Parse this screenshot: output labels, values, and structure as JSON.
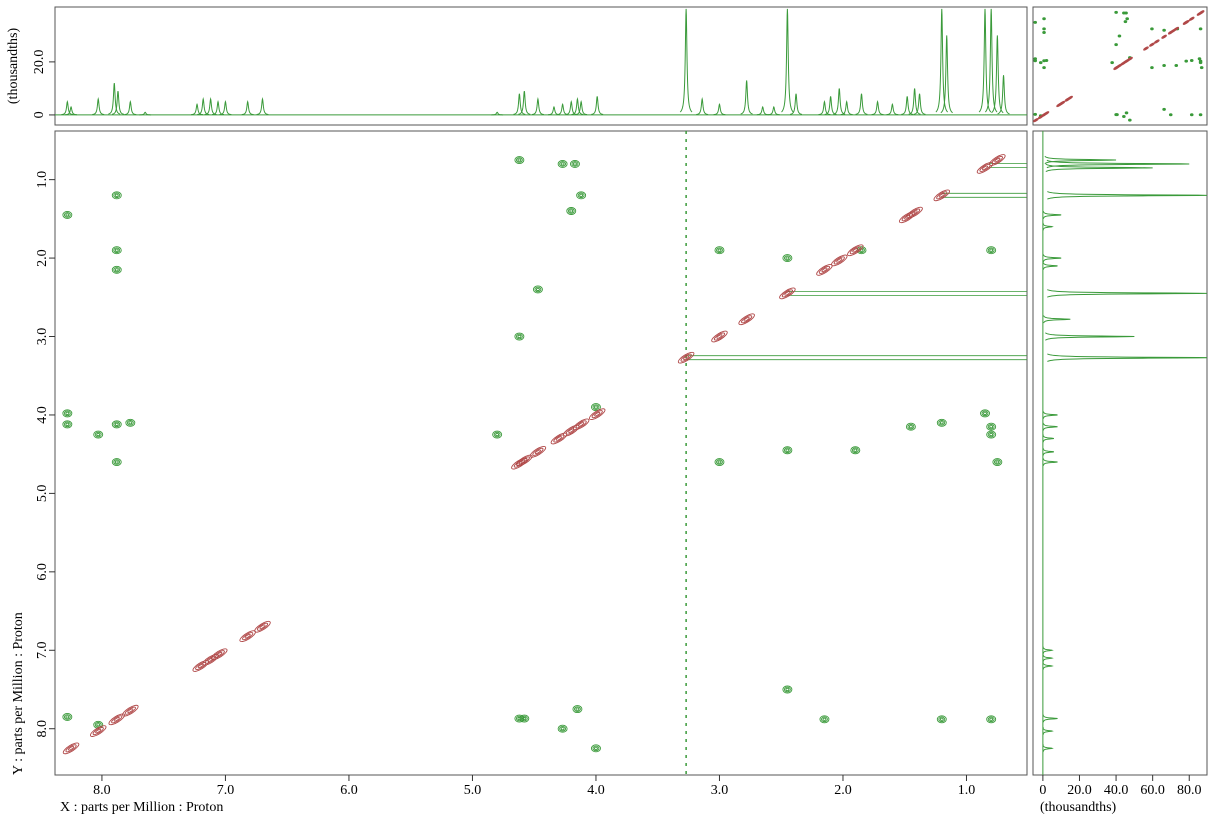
{
  "chart_data": {
    "type": "nmr2d",
    "x_label": "X : parts per Million : Proton",
    "y_label": "Y : parts per Million : Proton",
    "xlim": [
      8.38,
      0.51
    ],
    "ylim": [
      0.38,
      8.59
    ],
    "xticks": [
      {
        "value": 8,
        "label": "8.0"
      },
      {
        "value": 7,
        "label": "7.0"
      },
      {
        "value": 6,
        "label": "6.0"
      },
      {
        "value": 5,
        "label": "5.0"
      },
      {
        "value": 4,
        "label": "4.0"
      },
      {
        "value": 3,
        "label": "3.0"
      },
      {
        "value": 2,
        "label": "2.0"
      },
      {
        "value": 1,
        "label": "1.0"
      }
    ],
    "yticks": [
      {
        "value": 1,
        "label": "1.0"
      },
      {
        "value": 2,
        "label": "2.0"
      },
      {
        "value": 3,
        "label": "3.0"
      },
      {
        "value": 4,
        "label": "4.0"
      },
      {
        "value": 5,
        "label": "5.0"
      },
      {
        "value": 6,
        "label": "6.0"
      },
      {
        "value": 7,
        "label": "7.0"
      },
      {
        "value": 8,
        "label": "8.0"
      }
    ],
    "top_projection": {
      "axis_label": "(thousandths)",
      "color": "#3a9a3a",
      "ylim": [
        -3.8,
        40.7
      ],
      "yticks": [
        0,
        {
          "value": 20,
          "label": "20.0"
        }
      ],
      "x": [
        8.28,
        8.25,
        8.03,
        7.9,
        7.87,
        7.77,
        7.65,
        7.23,
        7.18,
        7.12,
        7.06,
        7.0,
        6.82,
        6.7,
        4.8,
        4.62,
        4.58,
        4.47,
        4.34,
        4.27,
        4.2,
        4.15,
        4.12,
        3.99,
        3.27,
        3.14,
        3.0,
        2.78,
        2.65,
        2.56,
        2.45,
        2.38,
        2.15,
        2.1,
        2.03,
        1.97,
        1.85,
        1.72,
        1.6,
        1.48,
        1.42,
        1.38,
        1.2,
        1.16,
        0.85,
        0.8,
        0.75,
        0.7
      ],
      "values": [
        5,
        3,
        6,
        12,
        9,
        5,
        1,
        4,
        6,
        6,
        5,
        5,
        5,
        6,
        1,
        8,
        9,
        6,
        3,
        4,
        5,
        6,
        5,
        7,
        40,
        6,
        4,
        13,
        3,
        3,
        40,
        8,
        5,
        7,
        10,
        5,
        8,
        5,
        4,
        7,
        10,
        8,
        40,
        30,
        40,
        40,
        30,
        15
      ]
    },
    "right_projection": {
      "axis_label": "(thousandths)",
      "color": "#3a9a3a",
      "xlim": [
        -5.4,
        89.7
      ],
      "xticks": [
        0,
        {
          "value": 20,
          "label": "20.0"
        },
        {
          "value": 40,
          "label": "40.0"
        },
        {
          "value": 60,
          "label": "60.0"
        },
        {
          "value": 80,
          "label": "80.0"
        }
      ],
      "y": [
        0.75,
        0.8,
        0.85,
        1.2,
        1.45,
        1.6,
        2.0,
        2.1,
        2.45,
        2.78,
        3.0,
        3.27,
        4.0,
        4.15,
        4.3,
        4.47,
        4.6,
        7.0,
        7.1,
        7.2,
        7.87,
        8.03,
        8.25
      ],
      "values": [
        40,
        80,
        60,
        90,
        10,
        5,
        10,
        8,
        90,
        15,
        50,
        90,
        8,
        8,
        6,
        6,
        8,
        5,
        5,
        5,
        8,
        5,
        5
      ]
    },
    "diagonal_peaks": {
      "color": "#b04848",
      "x": [
        8.25,
        8.03,
        7.88,
        7.77,
        7.2,
        7.12,
        7.05,
        6.82,
        6.7,
        4.62,
        4.58,
        4.47,
        4.3,
        4.2,
        4.12,
        3.99,
        3.27,
        3.0,
        2.78,
        2.45,
        2.15,
        2.03,
        1.9,
        1.48,
        1.42,
        1.2,
        0.85,
        0.75
      ],
      "y": [
        8.25,
        8.03,
        7.88,
        7.77,
        7.2,
        7.12,
        7.05,
        6.82,
        6.7,
        4.62,
        4.58,
        4.47,
        4.3,
        4.2,
        4.12,
        3.99,
        3.27,
        3.0,
        2.78,
        2.45,
        2.15,
        2.03,
        1.9,
        1.48,
        1.42,
        1.2,
        0.85,
        0.75
      ]
    },
    "cross_peaks": {
      "color": "#3a9a3a",
      "x": [
        8.28,
        8.28,
        8.28,
        8.28,
        8.03,
        8.03,
        7.88,
        7.88,
        7.88,
        7.88,
        7.88,
        7.77,
        4.62,
        4.62,
        4.62,
        4.58,
        4.47,
        4.27,
        4.27,
        4.2,
        4.17,
        4.15,
        4.12,
        4.0,
        4.0,
        4.8,
        3.0,
        3.0,
        2.45,
        2.45,
        1.9,
        1.85,
        1.2,
        0.8,
        0.8,
        0.8,
        0.75,
        0.8,
        1.2,
        2.15,
        2.45,
        0.85,
        1.45
      ],
      "y": [
        1.45,
        3.98,
        4.12,
        7.85,
        4.25,
        7.95,
        1.2,
        1.9,
        2.15,
        4.12,
        4.6,
        4.1,
        0.75,
        3.0,
        7.87,
        7.87,
        2.4,
        0.8,
        8.0,
        1.4,
        0.8,
        7.75,
        1.2,
        8.25,
        3.9,
        4.25,
        1.9,
        4.6,
        7.5,
        4.45,
        4.45,
        1.9,
        4.1,
        4.15,
        4.25,
        1.9,
        4.6,
        7.88,
        7.88,
        7.88,
        2.0,
        3.98,
        4.15
      ]
    },
    "ridges_x": [
      3.27
    ],
    "ridges_y": [
      3.27,
      2.45,
      1.2,
      0.82
    ]
  }
}
